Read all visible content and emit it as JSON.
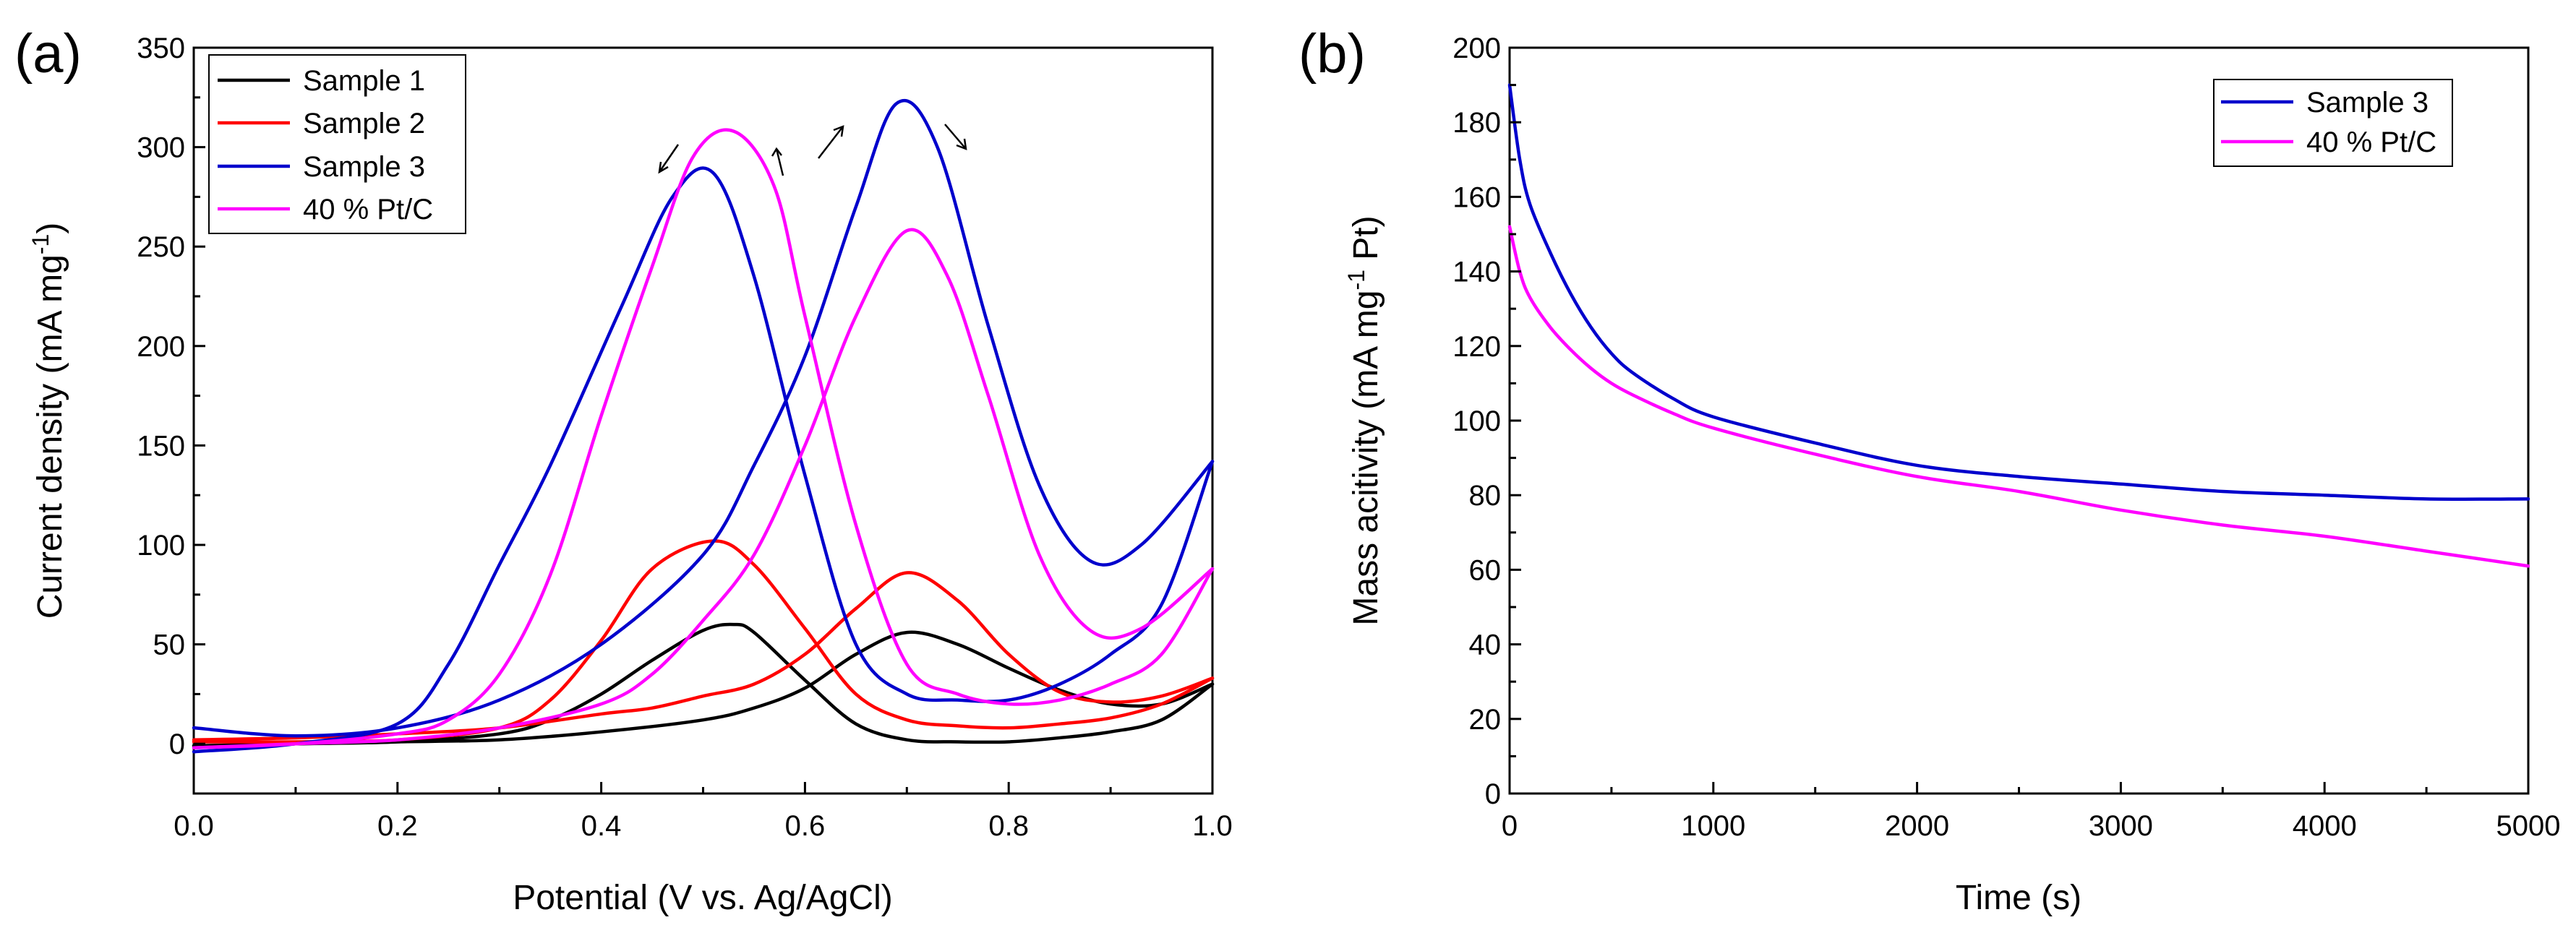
{
  "chart_data": [
    {
      "type": "line",
      "panel_label": "(a)",
      "title": "",
      "xlabel": "Potential (V vs. Ag/AgCl)",
      "ylabel_parts": [
        "Current density (mA mg",
        "-1",
        ")"
      ],
      "xlim": [
        0.0,
        1.0
      ],
      "ylim": [
        -25,
        350
      ],
      "xticks": [
        0.0,
        0.2,
        0.4,
        0.6,
        0.8,
        1.0
      ],
      "xtick_labels": [
        "0.0",
        "0.2",
        "0.4",
        "0.6",
        "0.8",
        "1.0"
      ],
      "yticks": [
        0,
        50,
        100,
        150,
        200,
        250,
        300,
        350
      ],
      "ytick_labels": [
        "0",
        "50",
        "100",
        "150",
        "200",
        "250",
        "300",
        "350"
      ],
      "legend_position": "top-left",
      "series": [
        {
          "name": "Sample 1",
          "color": "#000000",
          "forward": [
            [
              0.0,
              -1
            ],
            [
              0.1,
              0
            ],
            [
              0.2,
              1
            ],
            [
              0.3,
              2
            ],
            [
              0.4,
              6
            ],
            [
              0.5,
              12
            ],
            [
              0.55,
              18
            ],
            [
              0.6,
              28
            ],
            [
              0.65,
              45
            ],
            [
              0.7,
              56
            ],
            [
              0.75,
              50
            ],
            [
              0.8,
              38
            ],
            [
              0.85,
              27
            ],
            [
              0.9,
              20
            ],
            [
              0.95,
              20
            ],
            [
              1.0,
              30
            ]
          ],
          "reverse": [
            [
              1.0,
              30
            ],
            [
              0.95,
              12
            ],
            [
              0.9,
              6
            ],
            [
              0.85,
              3
            ],
            [
              0.8,
              1
            ],
            [
              0.75,
              1
            ],
            [
              0.7,
              2
            ],
            [
              0.65,
              10
            ],
            [
              0.6,
              32
            ],
            [
              0.55,
              56
            ],
            [
              0.53,
              60
            ],
            [
              0.5,
              57
            ],
            [
              0.45,
              42
            ],
            [
              0.4,
              25
            ],
            [
              0.35,
              12
            ],
            [
              0.3,
              5
            ],
            [
              0.2,
              1
            ],
            [
              0.1,
              0
            ],
            [
              0.0,
              -1
            ]
          ]
        },
        {
          "name": "Sample 2",
          "color": "#ff0000",
          "forward": [
            [
              0.0,
              2
            ],
            [
              0.1,
              3
            ],
            [
              0.2,
              5
            ],
            [
              0.3,
              8
            ],
            [
              0.4,
              15
            ],
            [
              0.45,
              18
            ],
            [
              0.5,
              24
            ],
            [
              0.55,
              30
            ],
            [
              0.6,
              45
            ],
            [
              0.65,
              68
            ],
            [
              0.7,
              86
            ],
            [
              0.75,
              72
            ],
            [
              0.8,
              45
            ],
            [
              0.85,
              26
            ],
            [
              0.9,
              21
            ],
            [
              0.95,
              24
            ],
            [
              1.0,
              33
            ]
          ],
          "reverse": [
            [
              1.0,
              33
            ],
            [
              0.95,
              20
            ],
            [
              0.9,
              13
            ],
            [
              0.85,
              10
            ],
            [
              0.8,
              8
            ],
            [
              0.75,
              9
            ],
            [
              0.7,
              12
            ],
            [
              0.65,
              25
            ],
            [
              0.6,
              58
            ],
            [
              0.55,
              90
            ],
            [
              0.51,
              102
            ],
            [
              0.45,
              88
            ],
            [
              0.4,
              52
            ],
            [
              0.35,
              22
            ],
            [
              0.3,
              8
            ],
            [
              0.2,
              2
            ],
            [
              0.1,
              1
            ],
            [
              0.0,
              1
            ]
          ]
        },
        {
          "name": "Sample 3",
          "color": "#0000cc",
          "forward": [
            [
              0.0,
              8
            ],
            [
              0.1,
              4
            ],
            [
              0.2,
              8
            ],
            [
              0.3,
              22
            ],
            [
              0.4,
              50
            ],
            [
              0.5,
              95
            ],
            [
              0.55,
              140
            ],
            [
              0.6,
              195
            ],
            [
              0.65,
              270
            ],
            [
              0.69,
              322
            ],
            [
              0.73,
              300
            ],
            [
              0.78,
              210
            ],
            [
              0.83,
              130
            ],
            [
              0.88,
              92
            ],
            [
              0.93,
              100
            ],
            [
              1.0,
              142
            ]
          ],
          "reverse": [
            [
              1.0,
              142
            ],
            [
              0.95,
              70
            ],
            [
              0.9,
              45
            ],
            [
              0.85,
              30
            ],
            [
              0.8,
              22
            ],
            [
              0.75,
              22
            ],
            [
              0.7,
              25
            ],
            [
              0.65,
              50
            ],
            [
              0.6,
              135
            ],
            [
              0.55,
              235
            ],
            [
              0.51,
              287
            ],
            [
              0.47,
              275
            ],
            [
              0.42,
              220
            ],
            [
              0.35,
              140
            ],
            [
              0.3,
              90
            ],
            [
              0.25,
              40
            ],
            [
              0.2,
              10
            ],
            [
              0.1,
              0
            ],
            [
              0.0,
              -4
            ]
          ]
        },
        {
          "name": "40 % Pt/C",
          "color": "#ff00ff",
          "forward": [
            [
              0.0,
              -2
            ],
            [
              0.1,
              0
            ],
            [
              0.2,
              2
            ],
            [
              0.3,
              8
            ],
            [
              0.4,
              20
            ],
            [
              0.45,
              35
            ],
            [
              0.5,
              62
            ],
            [
              0.55,
              95
            ],
            [
              0.6,
              150
            ],
            [
              0.65,
              215
            ],
            [
              0.7,
              258
            ],
            [
              0.74,
              235
            ],
            [
              0.78,
              175
            ],
            [
              0.83,
              95
            ],
            [
              0.88,
              57
            ],
            [
              0.93,
              58
            ],
            [
              1.0,
              88
            ]
          ],
          "reverse": [
            [
              1.0,
              88
            ],
            [
              0.95,
              45
            ],
            [
              0.9,
              30
            ],
            [
              0.85,
              22
            ],
            [
              0.8,
              20
            ],
            [
              0.75,
              25
            ],
            [
              0.7,
              40
            ],
            [
              0.65,
              110
            ],
            [
              0.6,
              215
            ],
            [
              0.57,
              280
            ],
            [
              0.53,
              308
            ],
            [
              0.49,
              295
            ],
            [
              0.45,
              240
            ],
            [
              0.4,
              165
            ],
            [
              0.35,
              85
            ],
            [
              0.3,
              35
            ],
            [
              0.25,
              12
            ],
            [
              0.2,
              5
            ],
            [
              0.1,
              0
            ],
            [
              0.0,
              -2
            ]
          ]
        }
      ]
    },
    {
      "type": "line",
      "panel_label": "(b)",
      "title": "",
      "xlabel": "Time (s)",
      "ylabel_parts": [
        "Mass acitivity (mA mg",
        "-1",
        " Pt)"
      ],
      "xlim": [
        0,
        5000
      ],
      "ylim": [
        0,
        200
      ],
      "xticks": [
        0,
        1000,
        2000,
        3000,
        4000,
        5000
      ],
      "xtick_labels": [
        "0",
        "1000",
        "2000",
        "3000",
        "4000",
        "5000"
      ],
      "yticks": [
        0,
        20,
        40,
        60,
        80,
        100,
        120,
        140,
        160,
        180,
        200
      ],
      "ytick_labels": [
        "0",
        "20",
        "40",
        "60",
        "80",
        "100",
        "120",
        "140",
        "160",
        "180",
        "200"
      ],
      "legend_position": "top-right",
      "series": [
        {
          "name": "Sample 3",
          "color": "#0000cc",
          "x": [
            0,
            50,
            100,
            200,
            300,
            400,
            500,
            600,
            800,
            1000,
            1500,
            2000,
            2500,
            3000,
            3500,
            4000,
            4500,
            5000
          ],
          "y": [
            190,
            170,
            158,
            145,
            134,
            125,
            118,
            113,
            106,
            101,
            94,
            88,
            85,
            83,
            81,
            80,
            79,
            79
          ]
        },
        {
          "name": "40 % Pt/C",
          "color": "#ff00ff",
          "x": [
            0,
            50,
            100,
            200,
            300,
            400,
            500,
            600,
            800,
            1000,
            1500,
            2000,
            2500,
            3000,
            3500,
            4000,
            4500,
            5000
          ],
          "y": [
            152,
            140,
            133,
            125,
            119,
            114,
            110,
            107,
            102,
            98,
            91,
            85,
            81,
            76,
            72,
            69,
            65,
            61
          ]
        }
      ]
    }
  ]
}
